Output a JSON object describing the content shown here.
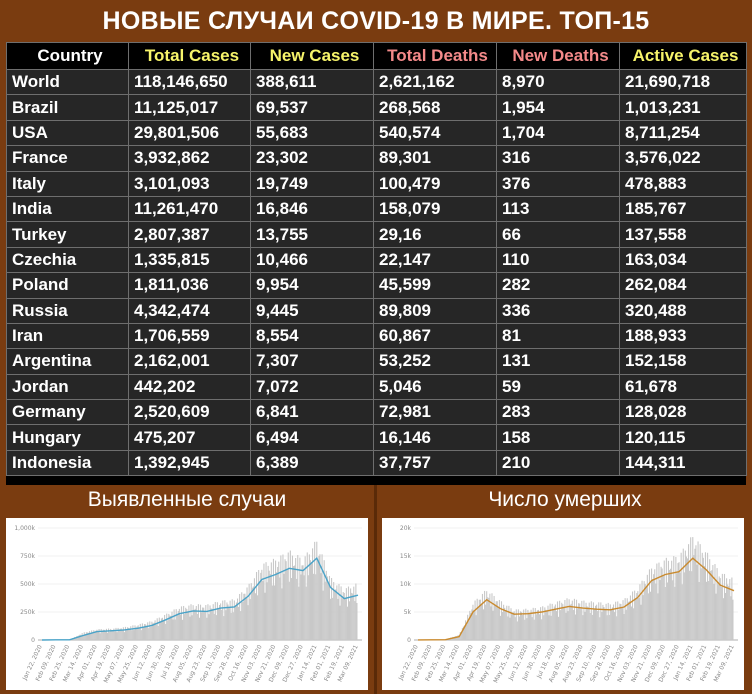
{
  "title": "НОВЫЕ СЛУЧАИ COVID-19 В МИРЕ. ТОП-15",
  "table": {
    "headers": [
      "Country",
      "Total Cases",
      "New Cases",
      "Total Deaths",
      "New Deaths",
      "Active Cases"
    ],
    "rows": [
      [
        "World",
        "118,146,650",
        "388,611",
        "2,621,162",
        "8,970",
        "21,690,718"
      ],
      [
        "Brazil",
        "11,125,017",
        "69,537",
        "268,568",
        "1,954",
        "1,013,231"
      ],
      [
        "USA",
        "29,801,506",
        "55,683",
        "540,574",
        "1,704",
        "8,711,254"
      ],
      [
        "France",
        "3,932,862",
        "23,302",
        "89,301",
        "316",
        "3,576,022"
      ],
      [
        "Italy",
        "3,101,093",
        "19,749",
        "100,479",
        "376",
        "478,883"
      ],
      [
        "India",
        "11,261,470",
        "16,846",
        "158,079",
        "113",
        "185,767"
      ],
      [
        "Turkey",
        "2,807,387",
        "13,755",
        "29,16",
        "66",
        "137,558"
      ],
      [
        "Czechia",
        "1,335,815",
        "10,466",
        "22,147",
        "110",
        "163,034"
      ],
      [
        "Poland",
        "1,811,036",
        "9,954",
        "45,599",
        "282",
        "262,084"
      ],
      [
        "Russia",
        "4,342,474",
        "9,445",
        "89,809",
        "336",
        "320,488"
      ],
      [
        "Iran",
        "1,706,559",
        "8,554",
        "60,867",
        "81",
        "188,933"
      ],
      [
        "Argentina",
        "2,162,001",
        "7,307",
        "53,252",
        "131",
        "152,158"
      ],
      [
        "Jordan",
        "442,202",
        "7,072",
        "5,046",
        "59",
        "61,678"
      ],
      [
        "Germany",
        "2,520,609",
        "6,841",
        "72,981",
        "283",
        "128,028"
      ],
      [
        "Hungary",
        "475,207",
        "6,494",
        "16,146",
        "158",
        "120,115"
      ],
      [
        "Indonesia",
        "1,392,945",
        "6,389",
        "37,757",
        "210",
        "144,311"
      ]
    ]
  },
  "sections": {
    "left_label": "Выявленные случаи",
    "right_label": "Число умерших"
  },
  "colors": {
    "background": "#7a3c10",
    "table_bg": "#262626",
    "header_yellow": "#f7f46a",
    "header_red": "#f48a8a",
    "bar_gray": "#c8c8c8",
    "cases_line": "#4aa3c8",
    "deaths_line": "#c98a2e"
  },
  "chart_data": [
    {
      "type": "bar",
      "ylim": [
        0,
        1000000
      ],
      "yticks": [
        0,
        250000,
        500000,
        750000,
        1000000
      ],
      "ytick_labels": [
        "0",
        "250k",
        "500k",
        "750k",
        "1,000k"
      ],
      "xtick_labels": [
        "Jan 22, 2020",
        "Feb 09, 2020",
        "Feb 25, 2020",
        "Mar 14, 2020",
        "Apr 01, 2020",
        "Apr 19, 2020",
        "May 07, 2020",
        "May 25, 2020",
        "Jun 12, 2020",
        "Jun 30, 2020",
        "Jul 18, 2020",
        "Aug 05, 2020",
        "Aug 23, 2020",
        "Sep 10, 2020",
        "Sep 28, 2020",
        "Oct 16, 2020",
        "Nov 03, 2020",
        "Nov 21, 2020",
        "Dec 09, 2020",
        "Dec 27, 2020",
        "Jan 14, 2021",
        "Feb 01, 2021",
        "Feb 19, 2021",
        "Mar 09, 2021"
      ],
      "series": [
        {
          "kind": "daily_bars",
          "x": [
            "2020-01-22",
            "2020-02-09",
            "2020-02-25",
            "2020-03-14",
            "2020-04-01",
            "2020-04-19",
            "2020-05-07",
            "2020-05-25",
            "2020-06-12",
            "2020-06-30",
            "2020-07-18",
            "2020-08-05",
            "2020-08-23",
            "2020-09-10",
            "2020-09-28",
            "2020-10-16",
            "2020-11-03",
            "2020-11-21",
            "2020-12-09",
            "2020-12-27",
            "2021-01-14",
            "2021-02-01",
            "2021-02-19",
            "2021-03-09"
          ],
          "values": [
            500,
            3000,
            1500,
            55000,
            80000,
            85000,
            95000,
            115000,
            140000,
            190000,
            245000,
            265000,
            260000,
            290000,
            300000,
            400000,
            560000,
            600000,
            660000,
            600000,
            740000,
            460000,
            380000,
            420000
          ]
        },
        {
          "kind": "moving_average",
          "x": [
            "2020-01-22",
            "2020-02-09",
            "2020-02-25",
            "2020-03-14",
            "2020-04-01",
            "2020-04-19",
            "2020-05-07",
            "2020-05-25",
            "2020-06-12",
            "2020-06-30",
            "2020-07-18",
            "2020-08-05",
            "2020-08-23",
            "2020-09-10",
            "2020-09-28",
            "2020-10-16",
            "2020-11-03",
            "2020-11-21",
            "2020-12-09",
            "2020-12-27",
            "2021-01-14",
            "2021-02-01",
            "2021-02-19",
            "2021-03-09"
          ],
          "values": [
            200,
            2000,
            2000,
            40000,
            75000,
            82000,
            90000,
            105000,
            130000,
            180000,
            235000,
            260000,
            255000,
            285000,
            295000,
            390000,
            540000,
            585000,
            640000,
            620000,
            730000,
            470000,
            370000,
            400000
          ]
        }
      ]
    },
    {
      "type": "bar",
      "ylim": [
        0,
        20000
      ],
      "yticks": [
        0,
        5000,
        10000,
        15000,
        20000
      ],
      "ytick_labels": [
        "0",
        "5k",
        "10k",
        "15k",
        "20k"
      ],
      "xtick_labels": [
        "Jan 22, 2020",
        "Feb 09, 2020",
        "Feb 25, 2020",
        "Mar 14, 2020",
        "Apr 01, 2020",
        "Apr 19, 2020",
        "May 07, 2020",
        "May 25, 2020",
        "Jun 12, 2020",
        "Jun 30, 2020",
        "Jul 18, 2020",
        "Aug 05, 2020",
        "Aug 23, 2020",
        "Sep 10, 2020",
        "Sep 28, 2020",
        "Oct 16, 2020",
        "Nov 03, 2020",
        "Nov 21, 2020",
        "Dec 09, 2020",
        "Dec 27, 2020",
        "Jan 14, 2021",
        "Feb 01, 2021",
        "Feb 19, 2021",
        "Mar 09, 2021"
      ],
      "series": [
        {
          "kind": "daily_bars",
          "x": [
            "2020-01-22",
            "2020-02-09",
            "2020-02-25",
            "2020-03-14",
            "2020-04-01",
            "2020-04-19",
            "2020-05-07",
            "2020-05-25",
            "2020-06-12",
            "2020-06-30",
            "2020-07-18",
            "2020-08-05",
            "2020-08-23",
            "2020-09-10",
            "2020-09-28",
            "2020-10-16",
            "2020-11-03",
            "2020-11-21",
            "2020-12-09",
            "2020-12-27",
            "2021-01-14",
            "2021-02-01",
            "2021-02-19",
            "2021-03-09"
          ],
          "values": [
            20,
            50,
            80,
            800,
            5500,
            7500,
            5800,
            4500,
            4600,
            4900,
            5600,
            6200,
            5800,
            5600,
            5400,
            6000,
            7800,
            10800,
            12000,
            12500,
            15500,
            13000,
            10000,
            9000
          ]
        },
        {
          "kind": "moving_average",
          "x": [
            "2020-01-22",
            "2020-02-09",
            "2020-02-25",
            "2020-03-14",
            "2020-04-01",
            "2020-04-19",
            "2020-05-07",
            "2020-05-25",
            "2020-06-12",
            "2020-06-30",
            "2020-07-18",
            "2020-08-05",
            "2020-08-23",
            "2020-09-10",
            "2020-09-28",
            "2020-10-16",
            "2020-11-03",
            "2020-11-21",
            "2020-12-09",
            "2020-12-27",
            "2021-01-14",
            "2021-02-01",
            "2021-02-19",
            "2021-03-09"
          ],
          "values": [
            10,
            40,
            60,
            600,
            5000,
            7200,
            5600,
            4600,
            4700,
            5000,
            5500,
            6000,
            5700,
            5500,
            5400,
            5900,
            7600,
            10600,
            11700,
            12200,
            14600,
            12500,
            9800,
            8800
          ]
        }
      ]
    }
  ]
}
